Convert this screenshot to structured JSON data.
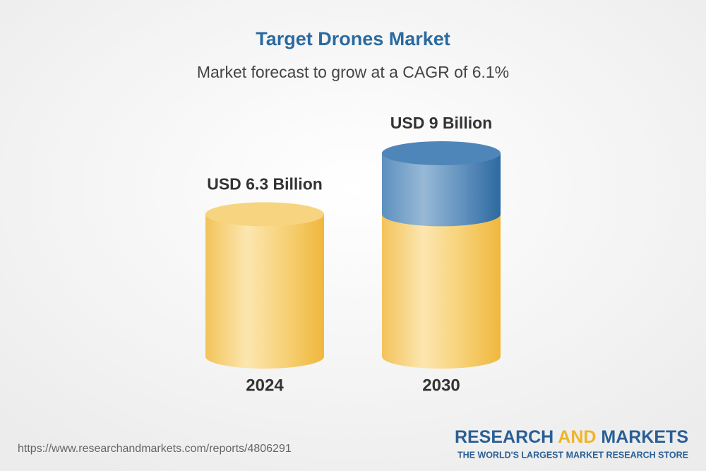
{
  "chart_data": {
    "type": "cylinder",
    "title": "Target Drones Market",
    "subtitle": "Market forecast to grow at a CAGR of 6.1%",
    "categories": [
      "2024",
      "2030"
    ],
    "values": [
      6.3,
      9
    ],
    "value_labels": [
      "USD 6.3 Billion",
      "USD 9 Billion"
    ],
    "colors": {
      "base": "#f3c45c",
      "growth": "#3f7bb0"
    }
  },
  "footer": {
    "url": "https://www.researchandmarkets.com/reports/4806291",
    "brand": [
      "RESEARCH",
      "AND",
      "MARKETS"
    ],
    "tagline": "THE WORLD'S LARGEST MARKET RESEARCH STORE"
  }
}
